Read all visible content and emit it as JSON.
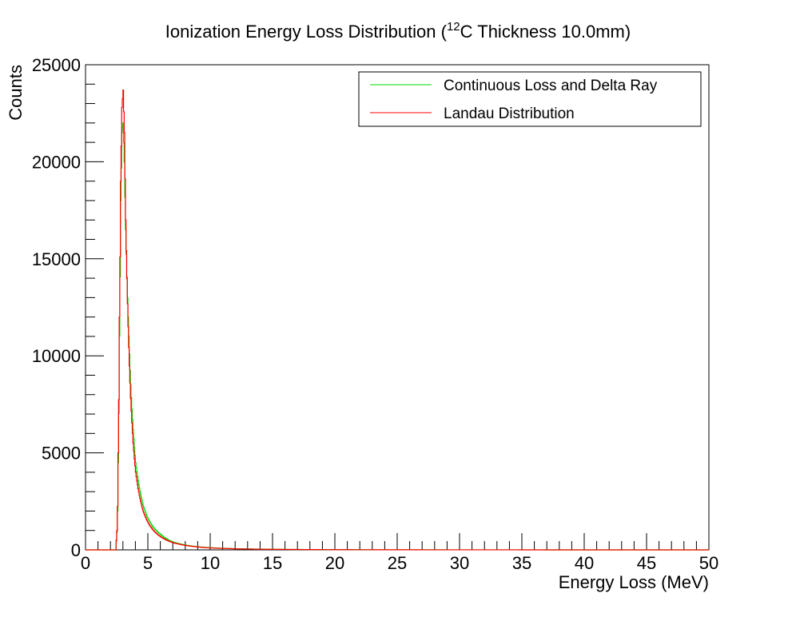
{
  "chart_data": {
    "type": "line",
    "title": {
      "prefix": "Ionization Energy Loss Distribution (",
      "superscript": "12",
      "suffix": "C Thickness 10.0mm)"
    },
    "xlabel": "Energy Loss (MeV)",
    "ylabel": "Counts",
    "xlim": [
      0,
      50
    ],
    "ylim": [
      0,
      25000
    ],
    "x_ticks": [
      "0",
      "5",
      "10",
      "15",
      "20",
      "25",
      "30",
      "35",
      "40",
      "45",
      "50"
    ],
    "y_ticks": [
      "0",
      "5000",
      "10000",
      "15000",
      "20000",
      "25000"
    ],
    "grid": false,
    "legend_position": "top-right",
    "series": [
      {
        "name": "Continuous Loss and Delta Ray",
        "color": "#00dd00",
        "points": [
          [
            0,
            0
          ],
          [
            2.4,
            0
          ],
          [
            2.5,
            900
          ],
          [
            2.6,
            4500
          ],
          [
            2.7,
            11000
          ],
          [
            2.8,
            18000
          ],
          [
            2.9,
            21500
          ],
          [
            3.0,
            22000
          ],
          [
            3.1,
            20000
          ],
          [
            3.2,
            16500
          ],
          [
            3.4,
            12000
          ],
          [
            3.6,
            8500
          ],
          [
            3.8,
            6200
          ],
          [
            4.0,
            4500
          ],
          [
            4.3,
            3200
          ],
          [
            4.6,
            2300
          ],
          [
            5.0,
            1600
          ],
          [
            5.5,
            1100
          ],
          [
            6.0,
            800
          ],
          [
            6.5,
            560
          ],
          [
            7.0,
            400
          ],
          [
            8.0,
            250
          ],
          [
            9.0,
            160
          ],
          [
            10.0,
            110
          ],
          [
            12.0,
            60
          ],
          [
            15.0,
            30
          ],
          [
            20.0,
            12
          ],
          [
            25.0,
            6
          ],
          [
            30.0,
            3
          ],
          [
            40.0,
            1
          ],
          [
            50.0,
            0
          ]
        ]
      },
      {
        "name": "Landau Distribution",
        "color": "#ff0000",
        "points": [
          [
            0,
            0
          ],
          [
            2.4,
            0
          ],
          [
            2.5,
            1000
          ],
          [
            2.6,
            5000
          ],
          [
            2.7,
            12000
          ],
          [
            2.8,
            19000
          ],
          [
            2.9,
            22800
          ],
          [
            3.0,
            23700
          ],
          [
            3.1,
            21500
          ],
          [
            3.2,
            17000
          ],
          [
            3.4,
            11500
          ],
          [
            3.6,
            7800
          ],
          [
            3.8,
            5500
          ],
          [
            4.0,
            4000
          ],
          [
            4.3,
            2800
          ],
          [
            4.6,
            2000
          ],
          [
            5.0,
            1400
          ],
          [
            5.5,
            950
          ],
          [
            6.0,
            680
          ],
          [
            6.5,
            500
          ],
          [
            7.0,
            370
          ],
          [
            8.0,
            230
          ],
          [
            9.0,
            150
          ],
          [
            10.0,
            100
          ],
          [
            12.0,
            55
          ],
          [
            15.0,
            28
          ],
          [
            20.0,
            11
          ],
          [
            25.0,
            5
          ],
          [
            30.0,
            2
          ],
          [
            40.0,
            1
          ],
          [
            50.0,
            0
          ]
        ]
      }
    ]
  }
}
